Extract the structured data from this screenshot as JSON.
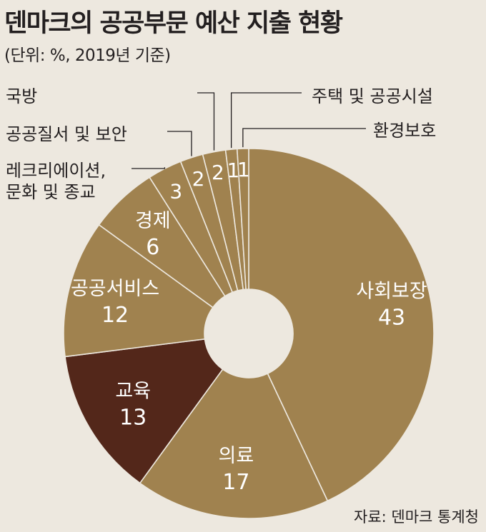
{
  "title": "덴마크의 공공부문 예산 지출 현황",
  "subtitle": "(단위: %, 2019년 기준)",
  "source": "자료: 덴마크 통계청",
  "colors": {
    "main": "#a0824f",
    "highlight": "#53271a",
    "background": "#ede8df"
  },
  "chart_data": {
    "type": "pie",
    "donut": true,
    "unit": "%",
    "slices": [
      {
        "label": "사회보장",
        "value": 43
      },
      {
        "label": "의료",
        "value": 17
      },
      {
        "label": "교육",
        "value": 13,
        "highlight": true
      },
      {
        "label": "공공서비스",
        "value": 12
      },
      {
        "label": "경제",
        "value": 6
      },
      {
        "label": "레크리에이션, 문화 및 종교",
        "value": 3
      },
      {
        "label": "공공질서 및 보안",
        "value": 2
      },
      {
        "label": "국방",
        "value": 2
      },
      {
        "label": "주택 및 공공시설",
        "value": 1
      },
      {
        "label": "환경보호",
        "value": 1
      }
    ]
  }
}
